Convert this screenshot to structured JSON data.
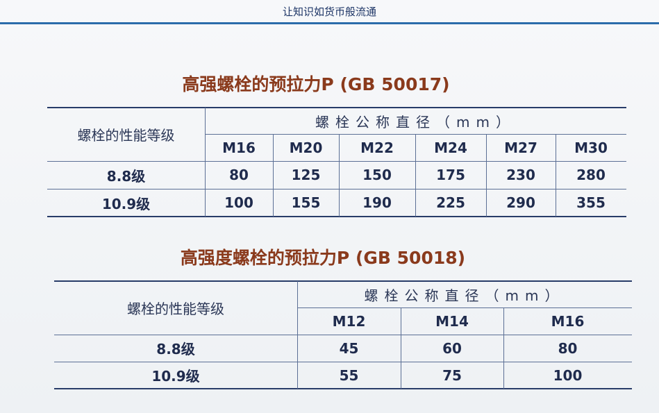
{
  "header": {
    "slogan": "让知识如货币般流通"
  },
  "tables": [
    {
      "title": "高强螺栓的预拉力P (GB 50017)",
      "grade_header": "螺栓的性能等级",
      "diameter_header": "螺栓公称直径（mm）",
      "diameters": [
        "M16",
        "M20",
        "M22",
        "M24",
        "M27",
        "M30"
      ],
      "rows": [
        {
          "grade": "8.8级",
          "values": [
            80,
            125,
            150,
            175,
            230,
            280
          ]
        },
        {
          "grade": "10.9级",
          "values": [
            100,
            155,
            190,
            225,
            290,
            355
          ]
        }
      ]
    },
    {
      "title": "高强度螺栓的预拉力P (GB 50018)",
      "grade_header": "螺栓的性能等级",
      "diameter_header": "螺栓公称直径（mm）",
      "diameters": [
        "M12",
        "M14",
        "M16"
      ],
      "rows": [
        {
          "grade": "8.8级",
          "values": [
            45,
            60,
            80
          ]
        },
        {
          "grade": "10.9级",
          "values": [
            55,
            75,
            100
          ]
        }
      ]
    }
  ]
}
